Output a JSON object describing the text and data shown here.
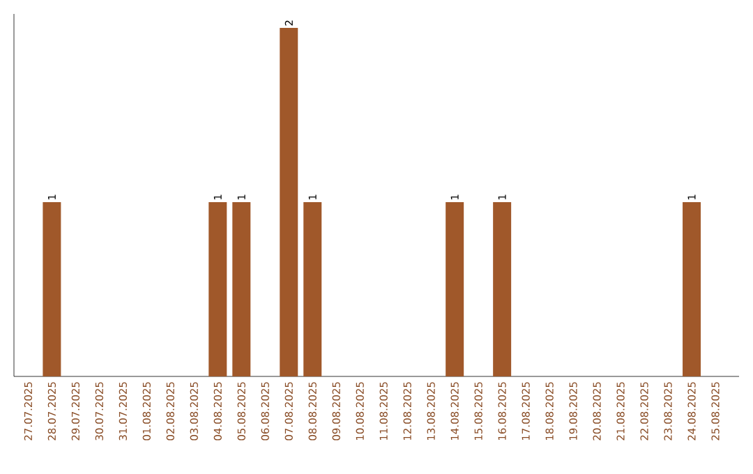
{
  "chart_data": {
    "type": "bar",
    "categories": [
      "27.07.2025",
      "28.07.2025",
      "29.07.2025",
      "30.07.2025",
      "31.07.2025",
      "01.08.2025",
      "02.08.2025",
      "03.08.2025",
      "04.08.2025",
      "05.08.2025",
      "06.08.2025",
      "07.08.2025",
      "08.08.2025",
      "09.08.2025",
      "10.08.2025",
      "11.08.2025",
      "12.08.2025",
      "13.08.2025",
      "14.08.2025",
      "15.08.2025",
      "16.08.2025",
      "17.08.2025",
      "18.08.2025",
      "19.08.2025",
      "20.08.2025",
      "21.08.2025",
      "22.08.2025",
      "23.08.2025",
      "24.08.2025",
      "25.08.2025"
    ],
    "values": [
      0,
      1,
      0,
      0,
      0,
      0,
      0,
      0,
      1,
      1,
      0,
      2,
      1,
      0,
      0,
      0,
      0,
      0,
      1,
      0,
      1,
      0,
      0,
      0,
      0,
      0,
      0,
      0,
      1,
      0
    ],
    "value_labels": [
      null,
      "1",
      null,
      null,
      null,
      null,
      null,
      null,
      "1",
      "1",
      null,
      "2",
      "1",
      null,
      null,
      null,
      null,
      null,
      "1",
      null,
      "1",
      null,
      null,
      null,
      null,
      null,
      null,
      null,
      "1",
      null
    ],
    "color": "#a0582a",
    "ylim": [
      0,
      2.08
    ],
    "tick_labels": "x",
    "grid": false
  }
}
